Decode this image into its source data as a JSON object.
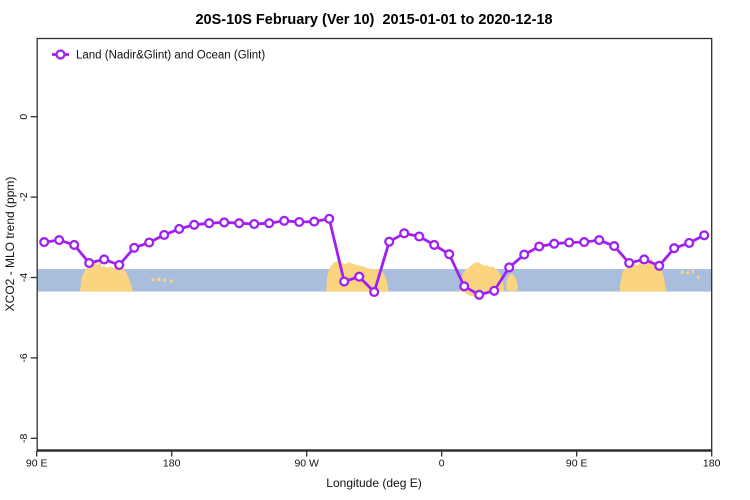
{
  "title": "20S-10S February (Ver 10)  2015-01-01 to 2020-12-18",
  "legend": {
    "label": "Land (Nadir&Glint) and Ocean (Glint)",
    "marker": "open-circle-on-line"
  },
  "colors": {
    "line": "#A020F0",
    "marker_fill": "#FFFFFF",
    "ocean_band": "#A9BEDC",
    "land_patch": "#FBD480",
    "axis": "#2E2E2E",
    "text": "#111111"
  },
  "axes": {
    "x": {
      "label": "Longitude (deg E)",
      "range_deg": [
        90,
        540
      ],
      "ticks": [
        {
          "deg": 90,
          "label": "90 E"
        },
        {
          "deg": 180,
          "label": "180"
        },
        {
          "deg": 270,
          "label": "90 W"
        },
        {
          "deg": 360,
          "label": "0"
        },
        {
          "deg": 450,
          "label": "90 E"
        },
        {
          "deg": 540,
          "label": "180"
        }
      ]
    },
    "y": {
      "label": "XCO2 - MLO trend (ppm)",
      "range": [
        -8.3,
        2.0
      ],
      "ticks": [
        {
          "value": 0,
          "label": "0"
        },
        {
          "value": -2,
          "label": "-2"
        },
        {
          "value": -4,
          "label": "-4"
        },
        {
          "value": -6,
          "label": "-6"
        },
        {
          "value": -8,
          "label": "-8"
        }
      ]
    }
  },
  "chart_data": {
    "type": "line",
    "title": "20S-10S February (Ver 10)  2015-01-01 to 2020-12-18",
    "xlabel": "Longitude (deg E)",
    "ylabel": "XCO2 - MLO trend (ppm)",
    "xlim_deg": [
      90,
      540
    ],
    "ylim": [
      -8.3,
      2.0
    ],
    "grid": false,
    "legend_position": "top-left-inside",
    "x": [
      95,
      105,
      115,
      125,
      135,
      145,
      155,
      165,
      175,
      185,
      195,
      205,
      215,
      225,
      235,
      245,
      255,
      265,
      275,
      285,
      295,
      305,
      315,
      325,
      335,
      345,
      355,
      365,
      375,
      385,
      395,
      405,
      415,
      425,
      435,
      445,
      455,
      465,
      475,
      485,
      495,
      505,
      515,
      525,
      535
    ],
    "series": [
      {
        "name": "Land (Nadir&Glint) and Ocean (Glint)",
        "values": [
          -3.12,
          -3.07,
          -3.19,
          -3.64,
          -3.55,
          -3.69,
          -3.26,
          -3.13,
          -2.94,
          -2.79,
          -2.69,
          -2.65,
          -2.63,
          -2.65,
          -2.67,
          -2.65,
          -2.59,
          -2.62,
          -2.61,
          -2.54,
          -4.1,
          -3.98,
          -4.36,
          -3.11,
          -2.9,
          -2.98,
          -3.19,
          -3.42,
          -4.22,
          -4.43,
          -4.33,
          -3.75,
          -3.43,
          -3.23,
          -3.16,
          -3.13,
          -3.12,
          -3.07,
          -3.22,
          -3.64,
          -3.55,
          -3.71,
          -3.27,
          -3.14,
          -2.95
        ]
      }
    ],
    "background_map_band": {
      "description": "world map strip 20S-10S stretched across plot",
      "ocean_top_ppm": -3.79,
      "ocean_bottom_ppm": -4.35,
      "land_patches": [
        [
          [
            119,
            -4.34
          ],
          [
            119.6,
            -4.05
          ],
          [
            121,
            -3.9
          ],
          [
            123,
            -3.78
          ],
          [
            125,
            -3.68
          ],
          [
            126.5,
            -3.62
          ],
          [
            127.8,
            -3.67
          ],
          [
            129.3,
            -3.61
          ],
          [
            130.8,
            -3.7
          ],
          [
            132.2,
            -3.57
          ],
          [
            133.2,
            -3.73
          ],
          [
            135,
            -3.72
          ],
          [
            137,
            -3.76
          ],
          [
            139,
            -3.73
          ],
          [
            141.5,
            -3.77
          ],
          [
            144.5,
            -3.74
          ],
          [
            147.5,
            -3.79
          ],
          [
            149.5,
            -3.86
          ],
          [
            151.5,
            -4.02
          ],
          [
            153.5,
            -4.25
          ],
          [
            154.2,
            -4.34
          ],
          [
            154.2,
            -4.35
          ],
          [
            119,
            -4.35
          ]
        ],
        [
          [
            283,
            -4.34
          ],
          [
            283.6,
            -4.0
          ],
          [
            284.6,
            -3.82
          ],
          [
            286,
            -3.72
          ],
          [
            288,
            -3.63
          ],
          [
            290.5,
            -3.6
          ],
          [
            293,
            -3.63
          ],
          [
            295.5,
            -3.67
          ],
          [
            298,
            -3.62
          ],
          [
            301,
            -3.66
          ],
          [
            304,
            -3.7
          ],
          [
            307,
            -3.72
          ],
          [
            310,
            -3.76
          ],
          [
            313,
            -3.79
          ],
          [
            316,
            -3.79
          ],
          [
            319,
            -3.82
          ],
          [
            321.5,
            -3.9
          ],
          [
            323.5,
            -4.1
          ],
          [
            324.5,
            -4.3
          ],
          [
            324.6,
            -4.35
          ],
          [
            283,
            -4.35
          ]
        ],
        [
          [
            372,
            -4.34
          ],
          [
            373,
            -4.05
          ],
          [
            374.5,
            -3.86
          ],
          [
            376.5,
            -3.8
          ],
          [
            378.5,
            -3.74
          ],
          [
            380.5,
            -3.68
          ],
          [
            382.5,
            -3.63
          ],
          [
            384.5,
            -3.62
          ],
          [
            386,
            -3.66
          ],
          [
            388,
            -3.71
          ],
          [
            390,
            -3.69
          ],
          [
            392,
            -3.74
          ],
          [
            394,
            -3.72
          ],
          [
            396,
            -3.79
          ],
          [
            398,
            -3.85
          ],
          [
            399.5,
            -3.94
          ],
          [
            400.8,
            -4.1
          ],
          [
            401.6,
            -4.3
          ],
          [
            401.6,
            -4.35
          ],
          [
            388,
            -4.36
          ],
          [
            385,
            -4.43
          ],
          [
            381.5,
            -4.48
          ],
          [
            378,
            -4.44
          ],
          [
            375.5,
            -4.37
          ],
          [
            372,
            -4.35
          ]
        ],
        [
          [
            402.9,
            -4.3
          ],
          [
            403.3,
            -4.08
          ],
          [
            404.6,
            -3.96
          ],
          [
            406.6,
            -3.9
          ],
          [
            408.6,
            -3.97
          ],
          [
            410,
            -4.1
          ],
          [
            410.8,
            -4.24
          ],
          [
            410.4,
            -4.32
          ],
          [
            407,
            -4.34
          ],
          [
            404,
            -4.33
          ]
        ],
        [
          [
            478.5,
            -4.34
          ],
          [
            479.3,
            -4.08
          ],
          [
            480.6,
            -3.85
          ],
          [
            482.5,
            -3.79
          ],
          [
            484.5,
            -3.74
          ],
          [
            486.5,
            -3.69
          ],
          [
            488.5,
            -3.65
          ],
          [
            490.3,
            -3.71
          ],
          [
            492.3,
            -3.59
          ],
          [
            494,
            -3.68
          ],
          [
            496,
            -3.69
          ],
          [
            498,
            -3.63
          ],
          [
            500.3,
            -3.54
          ],
          [
            501.3,
            -3.72
          ],
          [
            503,
            -3.72
          ],
          [
            505,
            -3.77
          ],
          [
            506.6,
            -3.83
          ],
          [
            508,
            -3.98
          ],
          [
            509.3,
            -4.25
          ],
          [
            509.8,
            -4.34
          ],
          [
            509.8,
            -4.35
          ],
          [
            478.5,
            -4.35
          ]
        ],
        [
          [
            166.5,
            -4.02
          ],
          [
            168.5,
            -4.02
          ],
          [
            168.5,
            -4.1
          ],
          [
            166.5,
            -4.1
          ]
        ],
        [
          [
            170.5,
            -4.0
          ],
          [
            172.5,
            -4.0
          ],
          [
            172.5,
            -4.09
          ],
          [
            170.5,
            -4.09
          ]
        ],
        [
          [
            174.5,
            -4.03
          ],
          [
            176.2,
            -4.03
          ],
          [
            176.2,
            -4.11
          ],
          [
            174.5,
            -4.11
          ]
        ],
        [
          [
            178.6,
            -4.05
          ],
          [
            180.6,
            -4.05
          ],
          [
            180.6,
            -4.13
          ],
          [
            178.6,
            -4.13
          ]
        ],
        [
          [
            519.5,
            -3.82
          ],
          [
            521.2,
            -3.82
          ],
          [
            521.2,
            -3.91
          ],
          [
            519.5,
            -3.91
          ]
        ],
        [
          [
            523.2,
            -3.85
          ],
          [
            524.8,
            -3.85
          ],
          [
            524.8,
            -3.93
          ],
          [
            523.2,
            -3.93
          ]
        ],
        [
          [
            526.6,
            -3.81
          ],
          [
            528.2,
            -3.81
          ],
          [
            528.2,
            -3.89
          ],
          [
            526.6,
            -3.89
          ]
        ],
        [
          [
            530.2,
            -3.96
          ],
          [
            531.8,
            -3.96
          ],
          [
            531.8,
            -4.04
          ],
          [
            530.2,
            -4.04
          ]
        ]
      ]
    }
  }
}
